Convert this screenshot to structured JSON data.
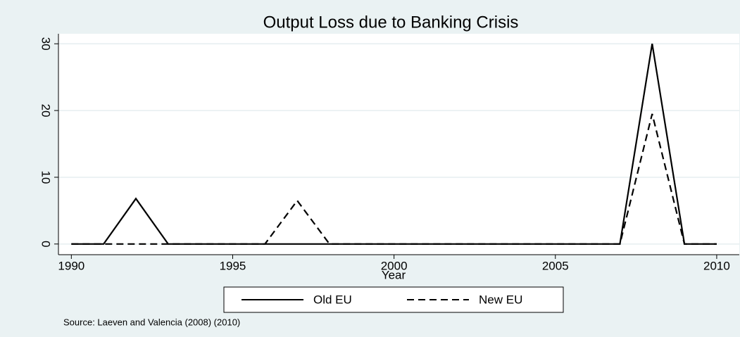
{
  "chart_data": {
    "type": "line",
    "title": "Output Loss due to Banking Crisis",
    "xlabel": "Year",
    "source": "Source: Laeven and Valencia (2008) (2010)",
    "x": [
      1990,
      1991,
      1992,
      1993,
      1994,
      1995,
      1996,
      1997,
      1998,
      1999,
      2000,
      2001,
      2002,
      2003,
      2004,
      2005,
      2006,
      2007,
      2008,
      2009,
      2010
    ],
    "series": [
      {
        "name": "Old EU",
        "color": "#000000",
        "linestyle": "solid",
        "values": [
          0,
          0,
          6.8,
          0,
          0,
          0,
          0,
          0,
          0,
          0,
          0,
          0,
          0,
          0,
          0,
          0,
          0,
          0,
          30,
          0,
          0
        ]
      },
      {
        "name": "New EU",
        "color": "#000000",
        "linestyle": "dashed",
        "values": [
          0,
          0,
          0,
          0,
          0,
          0,
          0,
          6.5,
          0,
          0,
          0,
          0,
          0,
          0,
          0,
          0,
          0,
          0,
          19.5,
          0,
          0
        ]
      }
    ],
    "xlim": [
      1989.6,
      2010.7
    ],
    "ylim": [
      -1.6,
      31.5
    ],
    "xticks": [
      1990,
      1995,
      2000,
      2005,
      2010
    ],
    "yticks": [
      0,
      10,
      20,
      30
    ],
    "grid": true
  }
}
